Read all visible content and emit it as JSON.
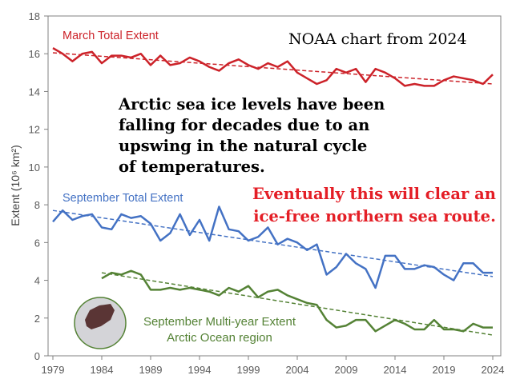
{
  "chart_data": {
    "type": "line",
    "title": "",
    "xlabel": "",
    "ylabel": "Extent (10⁶ km²)",
    "xlim": [
      1979,
      2024
    ],
    "ylim": [
      0,
      18
    ],
    "x_ticks": [
      "1979",
      "1984",
      "1989",
      "1994",
      "1999",
      "2004",
      "2009",
      "2014",
      "2019",
      "2024"
    ],
    "y_ticks": [
      "0",
      "2",
      "4",
      "6",
      "8",
      "10",
      "12",
      "14",
      "16",
      "18"
    ],
    "grid": false,
    "series": [
      {
        "name": "March Total Extent",
        "color": "#cc2229",
        "start": 1979,
        "values": [
          16.3,
          16.0,
          15.6,
          16.0,
          16.1,
          15.5,
          15.9,
          15.9,
          15.8,
          16.0,
          15.4,
          15.9,
          15.4,
          15.5,
          15.8,
          15.6,
          15.3,
          15.1,
          15.5,
          15.7,
          15.4,
          15.2,
          15.5,
          15.3,
          15.6,
          15.0,
          14.7,
          14.4,
          14.6,
          15.2,
          15.0,
          15.2,
          14.5,
          15.2,
          15.0,
          14.7,
          14.3,
          14.4,
          14.3,
          14.3,
          14.6,
          14.8,
          14.7,
          14.6,
          14.4,
          14.9
        ],
        "trend": [
          1979,
          16.05,
          2024,
          14.4
        ]
      },
      {
        "name": "September Total Extent",
        "color": "#4472c4",
        "start": 1979,
        "values": [
          7.1,
          7.7,
          7.2,
          7.4,
          7.5,
          6.8,
          6.7,
          7.5,
          7.3,
          7.4,
          7.0,
          6.1,
          6.5,
          7.5,
          6.4,
          7.2,
          6.1,
          7.9,
          6.7,
          6.6,
          6.1,
          6.3,
          6.8,
          5.9,
          6.2,
          6.0,
          5.6,
          5.9,
          4.3,
          4.7,
          5.4,
          4.9,
          4.6,
          3.6,
          5.3,
          5.3,
          4.6,
          4.6,
          4.8,
          4.7,
          4.3,
          4.0,
          4.9,
          4.9,
          4.4,
          4.4
        ],
        "trend": [
          1979,
          7.7,
          2024,
          4.2
        ]
      },
      {
        "name": "September Multi-year Extent",
        "name2": "Arctic Ocean region",
        "color": "#548235",
        "start": 1984,
        "values": [
          4.1,
          4.4,
          4.3,
          4.5,
          4.3,
          3.5,
          3.5,
          3.6,
          3.5,
          3.6,
          3.5,
          3.4,
          3.2,
          3.6,
          3.4,
          3.7,
          3.1,
          3.4,
          3.5,
          3.2,
          3.0,
          2.8,
          2.7,
          1.9,
          1.5,
          1.6,
          1.9,
          1.9,
          1.3,
          1.6,
          1.9,
          1.7,
          1.4,
          1.4,
          1.9,
          1.4,
          1.4,
          1.3,
          1.7,
          1.5,
          1.5
        ],
        "trend": [
          1984,
          4.4,
          2024,
          1.1
        ]
      }
    ],
    "annotations": {
      "source": "NOAA chart from 2024",
      "claim": [
        "Arctic sea ice levels have been",
        "falling for decades due to an",
        "upswing in the natural cycle",
        "of temperatures."
      ],
      "prediction": [
        "Eventually this will clear an",
        "ice-free northern sea route."
      ]
    }
  }
}
